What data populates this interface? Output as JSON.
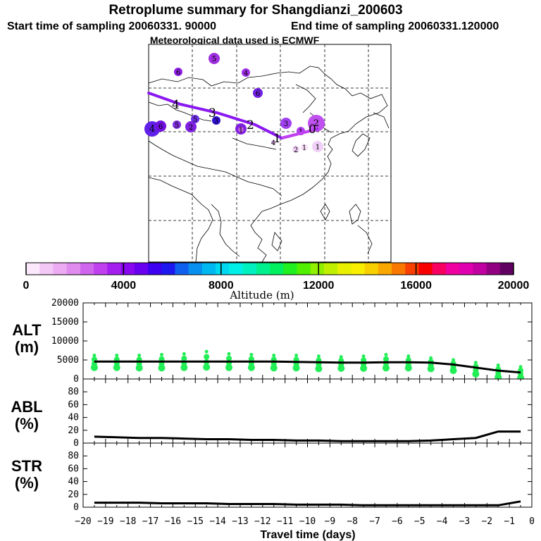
{
  "chart_data": {
    "type": "composite",
    "title": "Retroplume summary for Shangdianzi_200603",
    "subtitle_start": "Start time of sampling 20060331. 90000",
    "subtitle_end": "End time of sampling 20060331.120000",
    "subtitle_met": "Meteorological data used is ECMWF",
    "map": {
      "track_points": [
        {
          "label": "0",
          "value": 0,
          "alt_color": "#e070e0"
        },
        {
          "label": "1",
          "value": 1,
          "alt_color": "#c040e8"
        },
        {
          "label": "2",
          "value": 2,
          "alt_color": "#a020f0"
        },
        {
          "label": "3",
          "value": 3,
          "alt_color": "#7020e8"
        },
        {
          "label": "4",
          "value": 4,
          "alt_color": "#6020e0"
        }
      ],
      "cluster_labels": [
        {
          "label": "5",
          "color": "#a030e0"
        },
        {
          "label": "6",
          "color": "#9020e8"
        },
        {
          "label": "4",
          "color": "#a030e8"
        },
        {
          "label": "6",
          "color": "#7020e0"
        },
        {
          "label": "4",
          "color": "#6020e8"
        },
        {
          "label": "6",
          "color": "#7010e0"
        },
        {
          "label": "5",
          "color": "#8030e0"
        },
        {
          "label": "2",
          "color": "#8020e0"
        },
        {
          "label": "5",
          "color": "#7030e8"
        },
        {
          "label": "3",
          "color": "#3010d0"
        },
        {
          "label": "1",
          "color": "#8020e0"
        },
        {
          "label": "3",
          "color": "#a040f0"
        },
        {
          "label": "2",
          "color": "#c050f0"
        },
        {
          "label": "1",
          "color": "#b040f0"
        },
        {
          "label": "2",
          "color": "#f0d0f8"
        },
        {
          "label": "1",
          "color": "#f8e0f8"
        },
        {
          "label": "1",
          "color": "#f0d0f8"
        },
        {
          "label": "4",
          "color": "#e0b0f0"
        },
        {
          "label": "1",
          "color": "#c060e0"
        }
      ]
    },
    "colorbar": {
      "xlabel": "Altitude (m)",
      "tick_labels": [
        "0",
        "4000",
        "8000",
        "12000",
        "16000",
        "20000"
      ],
      "colors": [
        "#fbe8fb",
        "#f3c8f6",
        "#ecabf2",
        "#e08cee",
        "#d066ee",
        "#c040f0",
        "#a41ef0",
        "#8a08f0",
        "#6a00f0",
        "#3e00f0",
        "#1e18f0",
        "#1060f0",
        "#0890f0",
        "#00b8f0",
        "#00d8f0",
        "#00f0e8",
        "#00f0c0",
        "#00f090",
        "#00f060",
        "#20f020",
        "#50f000",
        "#90f000",
        "#c0f000",
        "#e8f000",
        "#f8f000",
        "#f8d000",
        "#f8a800",
        "#f87800",
        "#f84000",
        "#f80000",
        "#f80060",
        "#f000a0",
        "#e000b0",
        "#c000a0",
        "#900080",
        "#600060"
      ]
    },
    "panels": [
      {
        "name": "ALT",
        "label_line1": "ALT",
        "label_line2": "(m)",
        "ylim": [
          0,
          20000
        ],
        "y_tick_labels": [
          "0",
          "5000",
          "10000",
          "15000",
          "20000"
        ],
        "x": [
          -19.5,
          -18.5,
          -17.5,
          -16.5,
          -15.5,
          -14.5,
          -13.5,
          -12.5,
          -11.5,
          -10.5,
          -9.5,
          -8.5,
          -7.5,
          -6.5,
          -5.5,
          -4.5,
          -3.5,
          -2.5,
          -1.5,
          -0.5
        ],
        "line_values": [
          4600,
          4600,
          4600,
          4600,
          4600,
          4600,
          4600,
          4600,
          4600,
          4500,
          4400,
          4300,
          4300,
          4400,
          4400,
          4300,
          3800,
          3000,
          2200,
          1700
        ],
        "dot_max": [
          6200,
          6200,
          6200,
          6400,
          6600,
          7200,
          6600,
          6400,
          6200,
          6200,
          6000,
          5800,
          6000,
          6400,
          6000,
          5500,
          5000,
          4300,
          3600,
          3200
        ],
        "dot_min": [
          3000,
          3000,
          2900,
          2900,
          3000,
          3100,
          3000,
          3000,
          2900,
          2900,
          2700,
          2800,
          2800,
          2900,
          2900,
          2700,
          2200,
          1300,
          500,
          300
        ]
      },
      {
        "name": "ABL",
        "label_line1": "ABL",
        "label_line2": "(%)",
        "ylim": [
          0,
          100
        ],
        "y_tick_labels": [
          "0",
          "20",
          "40",
          "60",
          "80"
        ],
        "x": [
          -19.5,
          -18.5,
          -17.5,
          -16.5,
          -15.5,
          -14.5,
          -13.5,
          -12.5,
          -11.5,
          -10.5,
          -9.5,
          -8.5,
          -7.5,
          -6.5,
          -5.5,
          -4.5,
          -3.5,
          -2.5,
          -1.5,
          -0.5
        ],
        "line_values": [
          10,
          9,
          8,
          8,
          7,
          6,
          6,
          5,
          5,
          4,
          4,
          3,
          3,
          3,
          3,
          4,
          6,
          8,
          18,
          18
        ]
      },
      {
        "name": "STR",
        "label_line1": "STR",
        "label_line2": "(%)",
        "ylim": [
          0,
          100
        ],
        "y_tick_labels": [
          "0",
          "20",
          "40",
          "60",
          "80"
        ],
        "x": [
          -19.5,
          -18.5,
          -17.5,
          -16.5,
          -15.5,
          -14.5,
          -13.5,
          -12.5,
          -11.5,
          -10.5,
          -9.5,
          -8.5,
          -7.5,
          -6.5,
          -5.5,
          -4.5,
          -3.5,
          -2.5,
          -1.5,
          -0.5
        ],
        "line_values": [
          7,
          7,
          7,
          6,
          6,
          6,
          5,
          5,
          5,
          4,
          4,
          4,
          3,
          3,
          3,
          3,
          3,
          3,
          3,
          9
        ]
      }
    ],
    "x_axis": {
      "label": "Travel time (days)",
      "tick_labels": [
        "−20",
        "−19",
        "−18",
        "−17",
        "−16",
        "−15",
        "−14",
        "−13",
        "−12",
        "−11",
        "−10",
        "−9",
        "−8",
        "−7",
        "−6",
        "−5",
        "−4",
        "−3",
        "−2",
        "−1",
        "0"
      ],
      "xlim": [
        -20,
        0
      ]
    },
    "colors": {
      "dots": "#22ee55",
      "line": "#000000"
    }
  }
}
